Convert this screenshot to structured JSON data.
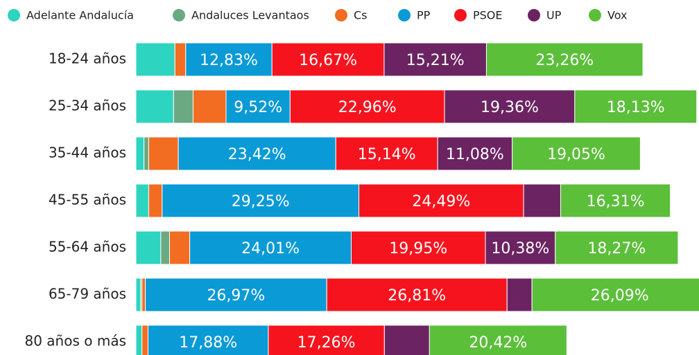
{
  "chart_data": {
    "type": "stacked-bar",
    "categories": [
      "18-24 años",
      "25-34 años",
      "35-44 años",
      "45-55 años",
      "55-64 años",
      "65-79 años",
      "80 años o más"
    ],
    "series": [
      {
        "name": "Adelante Andalucía",
        "color": "#2dd4c0",
        "values": [
          5.8,
          5.6,
          1.2,
          1.9,
          3.7,
          0.7,
          0.9
        ]
      },
      {
        "name": "Andaluces Levantaos",
        "color": "#6aa982",
        "values": [
          0,
          2.9,
          0.7,
          0,
          1.3,
          0.2,
          0
        ]
      },
      {
        "name": "Cs",
        "color": "#f26c22",
        "values": [
          1.6,
          4.9,
          4.4,
          2.0,
          3.0,
          0.5,
          0.9
        ]
      },
      {
        "name": "PP",
        "color": "#0a9ad6",
        "values": [
          12.83,
          9.52,
          23.42,
          29.25,
          24.01,
          26.97,
          17.88
        ],
        "value_labels": [
          "12,83%",
          "9,52%",
          "23,42%",
          "29,25%",
          "24,01%",
          "26,97%",
          "17,88%"
        ]
      },
      {
        "name": "PSOE",
        "color": "#f5141e",
        "values": [
          16.67,
          22.96,
          15.14,
          24.49,
          19.95,
          26.81,
          17.26
        ],
        "value_labels": [
          "16,67%",
          "22,96%",
          "15,14%",
          "24,49%",
          "19,95%",
          "26,81%",
          "17,26%"
        ]
      },
      {
        "name": "UP",
        "color": "#6b2461",
        "values": [
          15.21,
          19.36,
          11.08,
          5.5,
          10.38,
          3.7,
          6.7
        ],
        "value_labels": [
          "15,21%",
          "19,36%",
          "11,08%",
          null,
          "10,38%",
          null,
          null
        ]
      },
      {
        "name": "Vox",
        "color": "#5bbf3a",
        "values": [
          23.26,
          18.13,
          19.05,
          16.31,
          18.27,
          26.09,
          20.42
        ],
        "value_labels": [
          "23,26%",
          "18,13%",
          "19,05%",
          "16,31%",
          "18,27%",
          "26,09%",
          "20,42%"
        ]
      }
    ]
  }
}
